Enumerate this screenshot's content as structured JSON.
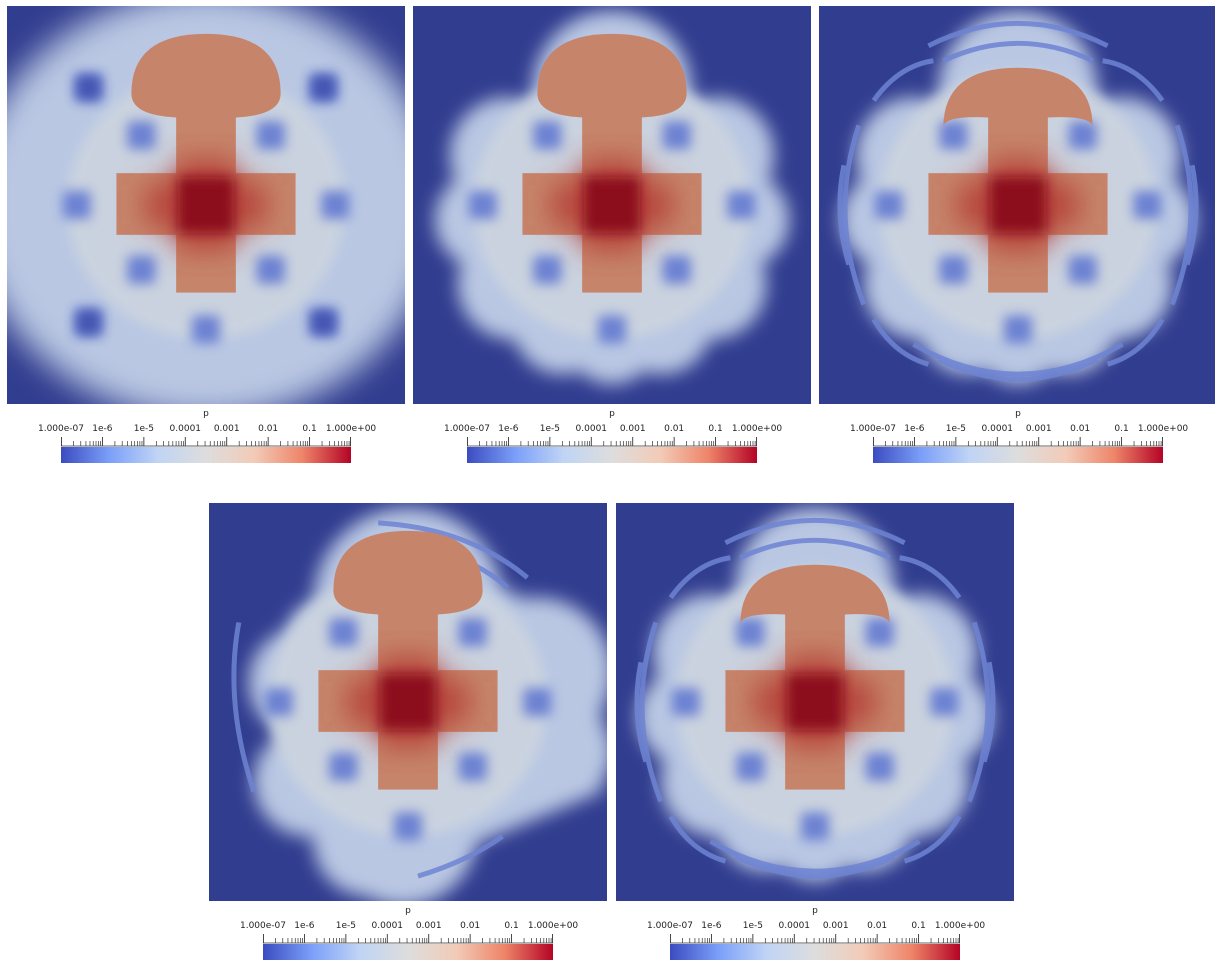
{
  "colormap": {
    "name": "coolwarm",
    "stops": [
      "#3b4cc0",
      "#7b9ff9",
      "#c0d4f5",
      "#dddddd",
      "#f2cbb7",
      "#ee8468",
      "#b40426"
    ]
  },
  "field_colors": {
    "background": "#313d8f",
    "low": "#5b73d0",
    "mid": "#b9c7e3",
    "high": "#c6846a",
    "core": "#8c0a1f"
  },
  "colorbar": {
    "title": "p",
    "range": [
      1e-07,
      1
    ],
    "scale": "log",
    "tick_labels": [
      "1.000e-07",
      "1e-6",
      "1e-5",
      "0.0001",
      "0.001",
      "0.01",
      "0.1",
      "1.000e+00"
    ],
    "tick_values": [
      1e-07,
      1e-06,
      1e-05,
      0.0001,
      0.001,
      0.01,
      0.1,
      1
    ]
  },
  "panels": [
    {
      "name": "panel-1",
      "variant": "smooth"
    },
    {
      "name": "panel-2",
      "variant": "lobed"
    },
    {
      "name": "panel-3",
      "variant": "rings"
    },
    {
      "name": "panel-4",
      "variant": "skewed"
    },
    {
      "name": "panel-5",
      "variant": "rings"
    }
  ]
}
